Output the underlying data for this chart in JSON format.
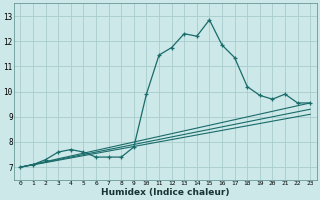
{
  "title": "",
  "xlabel": "Humidex (Indice chaleur)",
  "ylabel": "",
  "bg_color": "#cce8e8",
  "grid_color": "#aacccc",
  "line_color": "#1a6b6b",
  "xlim": [
    -0.5,
    23.5
  ],
  "ylim": [
    6.5,
    13.5
  ],
  "xticks": [
    0,
    1,
    2,
    3,
    4,
    5,
    6,
    7,
    8,
    9,
    10,
    11,
    12,
    13,
    14,
    15,
    16,
    17,
    18,
    19,
    20,
    21,
    22,
    23
  ],
  "yticks": [
    7,
    8,
    9,
    10,
    11,
    12,
    13
  ],
  "series1_x": [
    0,
    1,
    2,
    3,
    4,
    5,
    6,
    7,
    8,
    9,
    10,
    11,
    12,
    13,
    14,
    15,
    16,
    17,
    18,
    19,
    20,
    21,
    22,
    23
  ],
  "series1_y": [
    7.0,
    7.1,
    7.3,
    7.6,
    7.7,
    7.6,
    7.4,
    7.4,
    7.4,
    7.8,
    9.9,
    11.45,
    11.75,
    12.3,
    12.2,
    12.85,
    11.85,
    11.35,
    10.2,
    9.85,
    9.7,
    9.9,
    9.55,
    9.55
  ],
  "line1_x": [
    0,
    23
  ],
  "line1_y": [
    7.0,
    9.55
  ],
  "line2_x": [
    0,
    23
  ],
  "line2_y": [
    7.0,
    9.3
  ],
  "line3_x": [
    0,
    23
  ],
  "line3_y": [
    7.0,
    9.1
  ]
}
